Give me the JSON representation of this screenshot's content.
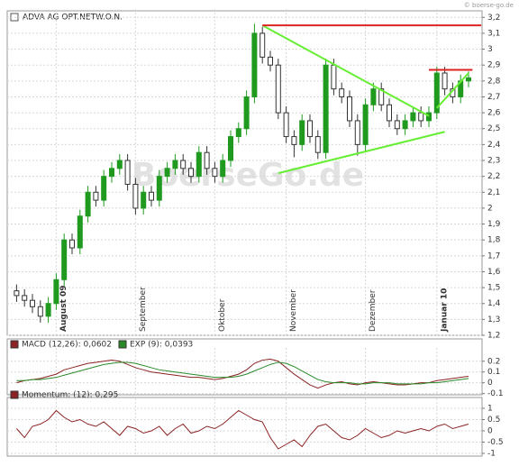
{
  "copyright": "© boerse-go.de",
  "watermark": "BoerseGo.de",
  "chart_data": [
    {
      "type": "candlestick",
      "title": "ADVA AG OPT.NETW.O.N.",
      "categories": [
        null,
        null,
        null,
        null,
        null,
        "August 09",
        null,
        null,
        null,
        null,
        null,
        null,
        null,
        null,
        null,
        "September",
        null,
        null,
        null,
        null,
        null,
        null,
        null,
        null,
        null,
        "Oktober",
        null,
        null,
        null,
        null,
        null,
        null,
        null,
        null,
        "November",
        null,
        null,
        null,
        null,
        null,
        null,
        null,
        null,
        null,
        "Dezember",
        null,
        null,
        null,
        null,
        null,
        null,
        null,
        null,
        "Januar 10",
        null,
        null,
        null,
        null
      ],
      "open": [
        1.48,
        1.45,
        1.42,
        1.38,
        1.32,
        1.4,
        1.55,
        1.8,
        1.75,
        1.95,
        2.1,
        2.05,
        2.2,
        2.25,
        2.3,
        2.15,
        2.0,
        2.1,
        2.05,
        2.2,
        2.25,
        2.3,
        2.25,
        2.2,
        2.35,
        2.25,
        2.2,
        2.3,
        2.45,
        2.5,
        2.7,
        3.1,
        2.95,
        2.9,
        2.6,
        2.45,
        2.4,
        2.55,
        2.45,
        2.35,
        2.9,
        2.75,
        2.7,
        2.55,
        2.4,
        2.65,
        2.75,
        2.65,
        2.55,
        2.5,
        2.55,
        2.6,
        2.55,
        2.6,
        2.85,
        2.75,
        2.7,
        2.8
      ],
      "high": [
        1.52,
        1.49,
        1.46,
        1.42,
        1.44,
        1.59,
        1.84,
        1.84,
        1.99,
        2.14,
        2.14,
        2.24,
        2.29,
        2.34,
        2.34,
        2.19,
        2.14,
        2.14,
        2.24,
        2.29,
        2.34,
        2.34,
        2.29,
        2.39,
        2.39,
        2.29,
        2.34,
        2.49,
        2.54,
        2.74,
        3.16,
        3.14,
        2.99,
        2.94,
        2.64,
        2.49,
        2.59,
        2.59,
        2.49,
        2.94,
        2.94,
        2.79,
        2.74,
        2.59,
        2.69,
        2.79,
        2.79,
        2.69,
        2.59,
        2.59,
        2.64,
        2.64,
        2.64,
        2.89,
        2.89,
        2.79,
        2.84,
        2.86
      ],
      "low": [
        1.41,
        1.38,
        1.34,
        1.28,
        1.28,
        1.36,
        1.51,
        1.71,
        1.71,
        1.91,
        2.01,
        2.01,
        2.16,
        2.21,
        2.11,
        1.96,
        1.96,
        2.01,
        2.01,
        2.16,
        2.21,
        2.21,
        2.16,
        2.16,
        2.21,
        2.16,
        2.16,
        2.26,
        2.41,
        2.46,
        2.66,
        2.91,
        2.86,
        2.56,
        2.41,
        2.32,
        2.36,
        2.41,
        2.31,
        2.31,
        2.71,
        2.66,
        2.51,
        2.33,
        2.36,
        2.61,
        2.61,
        2.51,
        2.46,
        2.46,
        2.51,
        2.51,
        2.51,
        2.56,
        2.71,
        2.66,
        2.66,
        2.76
      ],
      "close": [
        1.45,
        1.42,
        1.38,
        1.32,
        1.4,
        1.55,
        1.8,
        1.75,
        1.95,
        2.1,
        2.05,
        2.2,
        2.25,
        2.3,
        2.15,
        2.0,
        2.1,
        2.05,
        2.2,
        2.25,
        2.3,
        2.25,
        2.2,
        2.35,
        2.25,
        2.2,
        2.3,
        2.45,
        2.5,
        2.7,
        3.1,
        2.95,
        2.9,
        2.6,
        2.45,
        2.4,
        2.55,
        2.45,
        2.35,
        2.9,
        2.75,
        2.7,
        2.55,
        2.4,
        2.65,
        2.75,
        2.65,
        2.55,
        2.5,
        2.55,
        2.6,
        2.55,
        2.6,
        2.85,
        2.75,
        2.7,
        2.8,
        2.82
      ],
      "up_color": "#1f9a1f",
      "down_color": "#333333",
      "ylim": [
        1.2,
        3.23
      ],
      "yticks": [
        {
          "value": 1.2,
          "label": "1,2"
        },
        {
          "value": 1.3,
          "label": "1,3"
        },
        {
          "value": 1.4,
          "label": "1,4"
        },
        {
          "value": 1.5,
          "label": "1,5"
        },
        {
          "value": 1.6,
          "label": "1,6"
        },
        {
          "value": 1.7,
          "label": "1,7"
        },
        {
          "value": 1.8,
          "label": "1,8"
        },
        {
          "value": 1.9,
          "label": "1,9"
        },
        {
          "value": 2,
          "label": "2"
        },
        {
          "value": 2.1,
          "label": "2,1"
        },
        {
          "value": 2.2,
          "label": "2,2"
        },
        {
          "value": 2.3,
          "label": "2,3"
        },
        {
          "value": 2.4,
          "label": "2,4"
        },
        {
          "value": 2.5,
          "label": "2,5"
        },
        {
          "value": 2.6,
          "label": "2,6"
        },
        {
          "value": 2.7,
          "label": "2,7"
        },
        {
          "value": 2.8,
          "label": "2,8"
        },
        {
          "value": 2.9,
          "label": "2,9"
        },
        {
          "value": 3,
          "label": "3"
        },
        {
          "value": 3.1,
          "label": "3,1"
        },
        {
          "value": 3.2,
          "label": "3,2"
        }
      ],
      "grid": true,
      "trendlines": [
        {
          "color": "#66ee33",
          "x": [
            31,
            52
          ],
          "y": [
            3.15,
            2.58
          ]
        },
        {
          "color": "#66ee33",
          "x": [
            33,
            54
          ],
          "y": [
            2.22,
            2.48
          ]
        },
        {
          "color": "#66ee33",
          "x": [
            53,
            57
          ],
          "y": [
            2.63,
            2.85
          ]
        },
        {
          "color": "#dd2222",
          "x": [
            31,
            58.6
          ],
          "y": [
            3.15,
            3.15
          ]
        },
        {
          "color": "#dd2222",
          "x": [
            52,
            57.5
          ],
          "y": [
            2.87,
            2.87
          ]
        }
      ]
    },
    {
      "type": "line",
      "series": [
        {
          "name": "MACD (12,26): 0,0602",
          "color": "#8b2323",
          "values": [
            0.0,
            0.02,
            0.03,
            0.04,
            0.06,
            0.08,
            0.12,
            0.14,
            0.16,
            0.18,
            0.19,
            0.2,
            0.21,
            0.2,
            0.17,
            0.14,
            0.12,
            0.1,
            0.09,
            0.08,
            0.07,
            0.06,
            0.05,
            0.05,
            0.04,
            0.03,
            0.04,
            0.06,
            0.08,
            0.12,
            0.18,
            0.21,
            0.22,
            0.2,
            0.14,
            0.08,
            0.03,
            -0.02,
            -0.05,
            -0.02,
            0.0,
            0.01,
            -0.01,
            -0.02,
            0.0,
            0.01,
            0.0,
            -0.01,
            -0.02,
            -0.02,
            -0.01,
            0.0,
            0.0,
            0.02,
            0.03,
            0.04,
            0.05,
            0.06
          ]
        },
        {
          "name": "EXP (9): 0,0393",
          "color": "#2a8a2a",
          "values": [
            0.02,
            0.02,
            0.03,
            0.03,
            0.04,
            0.05,
            0.07,
            0.09,
            0.11,
            0.13,
            0.15,
            0.17,
            0.18,
            0.19,
            0.19,
            0.18,
            0.16,
            0.14,
            0.12,
            0.11,
            0.1,
            0.09,
            0.08,
            0.07,
            0.06,
            0.05,
            0.05,
            0.05,
            0.06,
            0.08,
            0.11,
            0.14,
            0.17,
            0.19,
            0.18,
            0.15,
            0.11,
            0.07,
            0.03,
            0.01,
            0.0,
            0.0,
            0.0,
            -0.01,
            -0.01,
            0.0,
            0.0,
            0.0,
            -0.01,
            -0.01,
            -0.01,
            -0.01,
            0.0,
            0.0,
            0.01,
            0.02,
            0.03,
            0.04
          ]
        }
      ],
      "ylim": [
        -0.12,
        0.29
      ],
      "yticks": [
        -0.1,
        0,
        0.1,
        0.2
      ],
      "grid": true
    },
    {
      "type": "line",
      "series": [
        {
          "name": "Momentum: (12): 0,295",
          "color": "#8b2323",
          "values": [
            0.1,
            -0.3,
            0.2,
            0.3,
            0.5,
            0.9,
            0.6,
            0.4,
            0.5,
            0.3,
            0.2,
            0.4,
            0.1,
            -0.2,
            0.2,
            0.1,
            -0.1,
            0.0,
            0.2,
            -0.2,
            0.1,
            0.3,
            -0.1,
            0.0,
            0.2,
            0.1,
            0.3,
            0.6,
            0.9,
            0.7,
            0.5,
            0.4,
            -0.3,
            -0.8,
            -0.6,
            -0.4,
            -0.7,
            -0.2,
            0.2,
            0.3,
            0.0,
            -0.3,
            -0.4,
            -0.2,
            0.1,
            -0.1,
            -0.3,
            -0.2,
            0.0,
            -0.1,
            0.0,
            0.1,
            0.0,
            0.2,
            0.3,
            0.1,
            0.2,
            0.3
          ]
        }
      ],
      "ylim": [
        -1.08,
        1.28
      ],
      "yticks": [
        -1,
        -0.5,
        0,
        0.5,
        1
      ],
      "grid": true
    }
  ]
}
